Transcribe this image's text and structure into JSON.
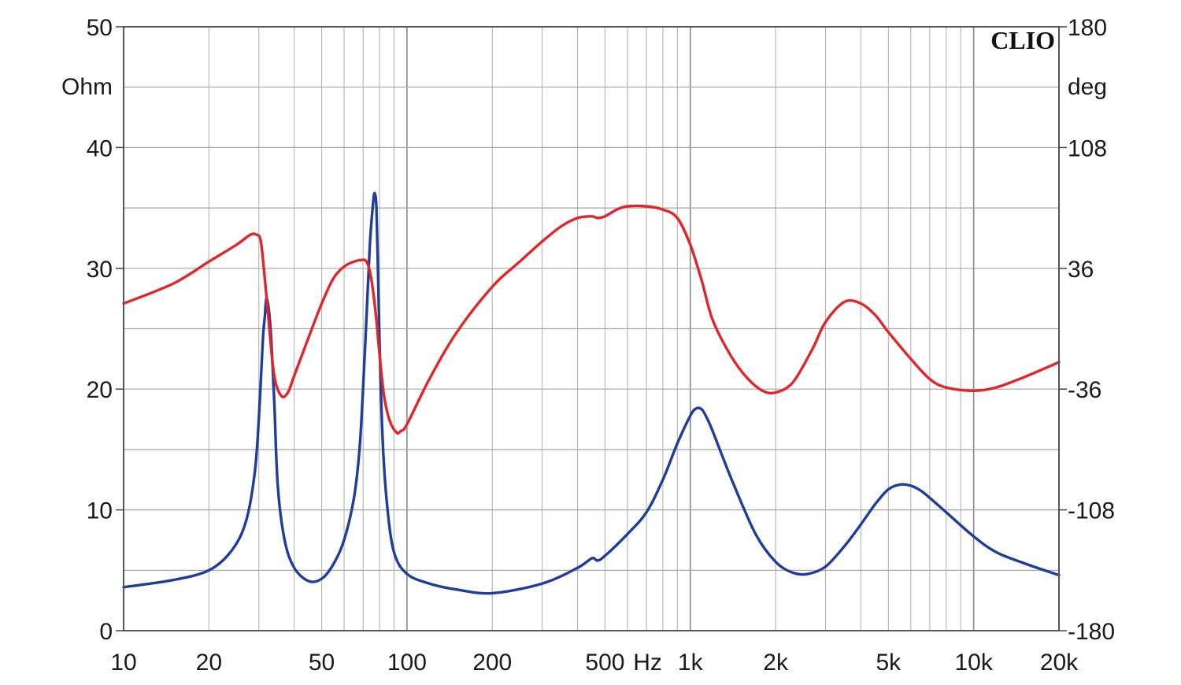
{
  "chart_data": {
    "type": "line",
    "brand": "CLIO",
    "x_scale": "log",
    "xlim": [
      10,
      20000
    ],
    "ylim_left": [
      0,
      50
    ],
    "ylim_right": [
      -180,
      180
    ],
    "left_unit": "Ohm",
    "right_unit": "deg",
    "left_ticks": [
      {
        "value": 0,
        "label": "0"
      },
      {
        "value": 10,
        "label": "10"
      },
      {
        "value": 20,
        "label": "20"
      },
      {
        "value": 30,
        "label": "30"
      },
      {
        "value": 40,
        "label": "40"
      },
      {
        "value": 50,
        "label": "50"
      }
    ],
    "right_ticks": [
      {
        "value": -180,
        "label": "-180"
      },
      {
        "value": -108,
        "label": "-108"
      },
      {
        "value": -36,
        "label": "-36"
      },
      {
        "value": 36,
        "label": "36"
      },
      {
        "value": 108,
        "label": "108"
      },
      {
        "value": 180,
        "label": "180"
      }
    ],
    "x_ticks": [
      {
        "value": 10,
        "label": "10"
      },
      {
        "value": 20,
        "label": "20"
      },
      {
        "value": 50,
        "label": "50"
      },
      {
        "value": 100,
        "label": "100"
      },
      {
        "value": 200,
        "label": "200"
      },
      {
        "value": 500,
        "label": "500"
      },
      {
        "value": 1000,
        "label": "1k"
      },
      {
        "value": 2000,
        "label": "2k"
      },
      {
        "value": 5000,
        "label": "5k"
      },
      {
        "value": 10000,
        "label": "10k"
      },
      {
        "value": 20000,
        "label": "20k"
      }
    ],
    "x_unit_label": "Hz",
    "grid": true,
    "series": [
      {
        "axis": "left",
        "color": "#1f3d99",
        "x": [
          10,
          15,
          20,
          24,
          27,
          29,
          30,
          31,
          31.5,
          32,
          33,
          34,
          35,
          37,
          40,
          45,
          50,
          55,
          60,
          65,
          68,
          70,
          72,
          74,
          76,
          77,
          78,
          79,
          80,
          82,
          85,
          90,
          100,
          120,
          150,
          200,
          300,
          400,
          450,
          470,
          500,
          600,
          700,
          800,
          900,
          1000,
          1050,
          1100,
          1150,
          1200,
          1400,
          1700,
          2000,
          2300,
          2600,
          3000,
          3500,
          4000,
          4500,
          5000,
          5500,
          6000,
          6500,
          7000,
          8000,
          10000,
          12000,
          15000,
          20000
        ],
        "values": [
          3.6,
          4.2,
          5.0,
          6.6,
          9.0,
          13.0,
          17.5,
          24.0,
          26.0,
          27.5,
          25.0,
          19.0,
          12.0,
          7.5,
          5.2,
          4.1,
          4.3,
          5.5,
          7.5,
          11.0,
          15.0,
          20.0,
          26.0,
          32.0,
          35.5,
          36.2,
          35.0,
          30.0,
          24.0,
          16.0,
          10.5,
          6.5,
          4.7,
          3.9,
          3.4,
          3.1,
          3.9,
          5.2,
          6.0,
          5.8,
          6.2,
          8.0,
          9.8,
          12.5,
          15.5,
          17.8,
          18.4,
          18.3,
          17.5,
          16.5,
          12.5,
          8.0,
          5.7,
          4.8,
          4.7,
          5.3,
          7.0,
          8.8,
          10.5,
          11.7,
          12.1,
          12.0,
          11.6,
          11.0,
          9.8,
          7.8,
          6.5,
          5.6,
          4.6
        ]
      },
      {
        "axis": "right",
        "color": "#e0262a",
        "x": [
          10,
          15,
          20,
          25,
          28,
          29.5,
          30.5,
          31.5,
          32.5,
          34,
          36,
          38,
          40,
          45,
          50,
          55,
          60,
          65,
          70,
          72,
          74,
          76,
          78,
          80,
          83,
          87,
          92,
          95,
          100,
          120,
          150,
          200,
          250,
          300,
          350,
          400,
          450,
          470,
          500,
          550,
          600,
          700,
          800,
          900,
          1000,
          1100,
          1200,
          1400,
          1600,
          1800,
          2000,
          2300,
          2700,
          3000,
          3500,
          4000,
          4500,
          5000,
          6000,
          7000,
          8000,
          10000,
          12000,
          15000,
          20000
        ],
        "values": [
          15,
          27,
          40,
          50,
          56,
          56,
          52,
          30,
          5,
          -28,
          -40,
          -38,
          -28,
          -5,
          15,
          30,
          37,
          40,
          41,
          40,
          34,
          22,
          5,
          -15,
          -40,
          -55,
          -62,
          -61,
          -57,
          -30,
          -2,
          25,
          40,
          52,
          61,
          66,
          67,
          66,
          67,
          71,
          73,
          73,
          71,
          66,
          50,
          28,
          5,
          -17,
          -30,
          -37,
          -38,
          -32,
          -12,
          4,
          16,
          15,
          8,
          -2,
          -18,
          -30,
          -35,
          -37,
          -35,
          -29,
          -20
        ]
      }
    ]
  }
}
